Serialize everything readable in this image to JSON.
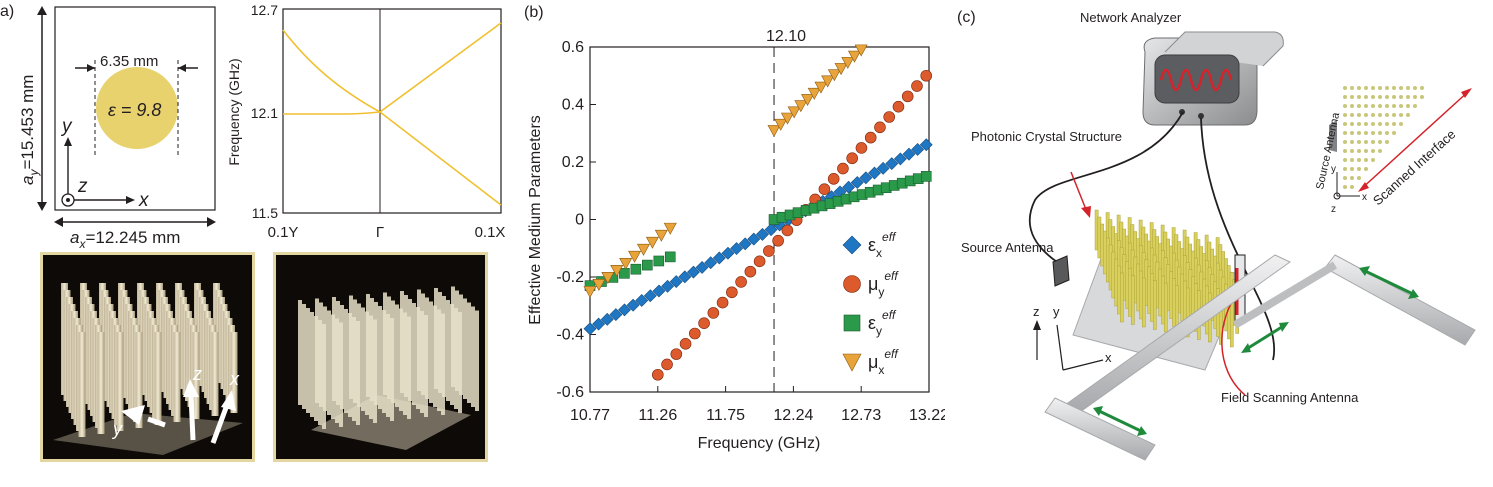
{
  "panel_a": {
    "label": "a)",
    "unit_cell": {
      "ay_label": "a",
      "ay_sub": "y",
      "ay_value": "=15.453 mm",
      "ax_label": "a",
      "ax_sub": "x",
      "ax_value": "=12.245 mm",
      "diameter": "6.35 mm",
      "epsilon": "ε = 9.8",
      "axis_x": "x",
      "axis_y": "y",
      "axis_z": "z",
      "rod_color": "#e8d26e"
    },
    "band_chart": {
      "ylabel": "Frequency (GHz)",
      "yticks": [
        "12.7",
        "12.1",
        "11.5"
      ],
      "xticks": [
        "0.1Y",
        "Γ",
        "0.1X"
      ],
      "line_color": "#f0c030"
    },
    "photo_left": {
      "axis_z": "z",
      "axis_x": "x",
      "axis_y": "y"
    },
    "photo_right": {}
  },
  "panel_b": {
    "label": "(b)",
    "marker_label": "12.10",
    "legend": [
      {
        "sym": "ε",
        "sub": "x",
        "sup": "eff",
        "color": "#1f77c4",
        "shape": "diamond"
      },
      {
        "sym": "μ",
        "sub": "y",
        "sup": "eff",
        "color": "#dd5a2c",
        "shape": "circle"
      },
      {
        "sym": "ε",
        "sub": "y",
        "sup": "eff",
        "color": "#2a9a4a",
        "shape": "square"
      },
      {
        "sym": "μ",
        "sub": "x",
        "sup": "eff",
        "color": "#e8a43a",
        "shape": "triangle"
      }
    ]
  },
  "chart_data": {
    "type": "scatter",
    "title": "",
    "xlabel": "Frequency (GHz)",
    "ylabel": "Effective Medium Parameters",
    "xlim": [
      10.77,
      13.22
    ],
    "ylim": [
      -0.6,
      0.6
    ],
    "xticks": [
      10.77,
      11.26,
      11.75,
      12.24,
      12.73,
      13.22
    ],
    "yticks": [
      -0.6,
      -0.4,
      -0.2,
      0,
      0.2,
      0.4,
      0.6
    ],
    "vline": 12.1,
    "series": [
      {
        "name": "εx eff",
        "x_start": 10.77,
        "x_end": 13.2,
        "y_start": -0.38,
        "y_end": 0.26,
        "count": 40
      },
      {
        "name": "μy eff",
        "x_start": 11.26,
        "x_end": 13.2,
        "y_start": -0.54,
        "y_end": 0.5,
        "count": 30
      },
      {
        "name": "εy eff",
        "x_start": 10.77,
        "x_end": 11.35,
        "y_start": -0.23,
        "y_end": -0.13,
        "count": 8
      },
      {
        "name": "εy eff",
        "x_start": 12.1,
        "x_end": 13.2,
        "y_start": 0.0,
        "y_end": 0.15,
        "count": 20
      },
      {
        "name": "μx eff",
        "x_start": 10.77,
        "x_end": 11.35,
        "y_start": -0.25,
        "y_end": -0.03,
        "count": 10
      },
      {
        "name": "μx eff",
        "x_start": 12.1,
        "x_end": 12.73,
        "y_start": 0.31,
        "y_end": 0.59,
        "count": 14
      }
    ]
  },
  "panel_c": {
    "label": "(c)",
    "network_analyzer": "Network Analyzer",
    "photonic_crystal": "Photonic Crystal Structure",
    "source_antenna": "Source Antenna",
    "field_scanning": "Field Scanning Antenna",
    "inset_source": "Source Antenna",
    "inset_scanned": "Scanned Interface",
    "axis_z": "z",
    "axis_y": "y",
    "axis_x": "x"
  }
}
